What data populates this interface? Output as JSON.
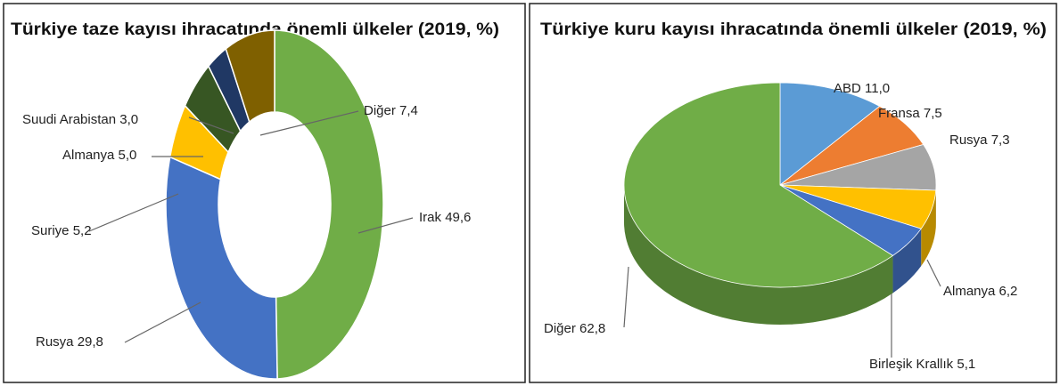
{
  "chart_data": [
    {
      "type": "donut",
      "title": "Türkiye taze kayısı ihracatında önemli ülkeler (2019, %)",
      "categories": [
        "Irak",
        "Rusya",
        "Suriye",
        "Almanya",
        "Suudi Arabistan",
        "Diğer"
      ],
      "values": [
        49.6,
        29.8,
        5.2,
        5.0,
        3.0,
        7.4
      ],
      "value_labels": [
        "49,6",
        "29,8",
        "5,2",
        "5,0",
        "3,0",
        "7,4"
      ],
      "colors": [
        "#70ad47",
        "#4472c4",
        "#ffc000",
        "#375623",
        "#203864",
        "#7f6000"
      ]
    },
    {
      "type": "pie3d",
      "title": "Türkiye kuru kayısı ihracatında önemli ülkeler (2019, %)",
      "categories": [
        "ABD",
        "Fransa",
        "Rusya",
        "Almanya",
        "Birleşik Krallık",
        "Diğer"
      ],
      "values": [
        11.0,
        7.5,
        7.3,
        6.2,
        5.1,
        62.8
      ],
      "value_labels": [
        "11,0",
        "7,5",
        "7,3",
        "6,2",
        "5,1",
        "62,8"
      ],
      "colors": [
        "#5b9bd5",
        "#ed7d31",
        "#a5a5a5",
        "#ffc000",
        "#4472c4",
        "#70ad47"
      ]
    }
  ]
}
